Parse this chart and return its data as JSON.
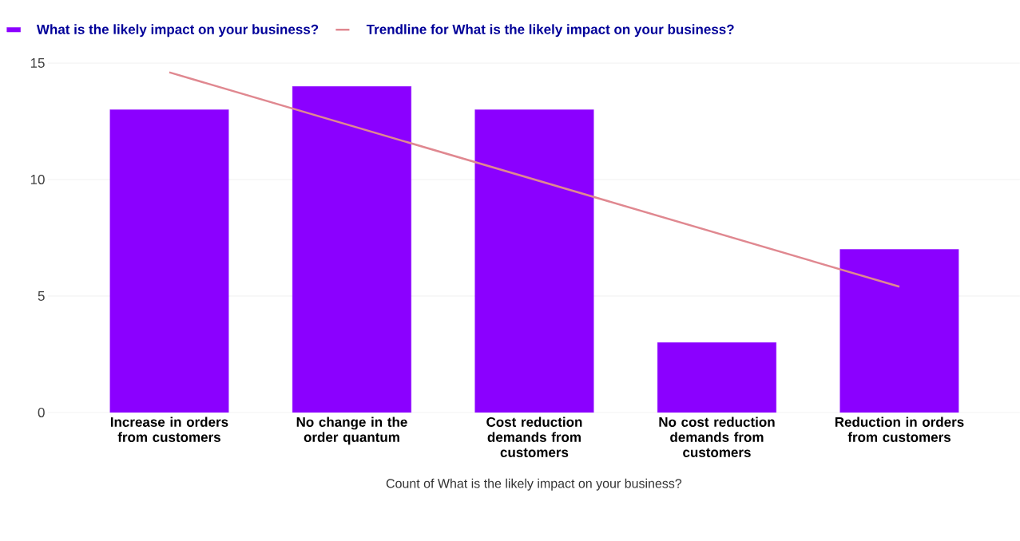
{
  "chart_data": {
    "type": "bar",
    "xlabel": "Count of What is the likely impact on your business?",
    "categories": [
      "Increase in orders from customers",
      "No change in the order quantum",
      "Cost reduction demands from customers",
      "No cost reduction demands from customers",
      "Reduction in orders from customers"
    ],
    "ylim": [
      0,
      15
    ],
    "yticks": [
      0,
      5,
      10,
      15
    ],
    "grid": "y",
    "legend": "top left",
    "series": [
      {
        "name": "What is the likely impact on your business?",
        "color": "#8b00ff",
        "values": [
          13,
          14,
          13,
          3,
          7
        ]
      },
      {
        "name": "Trendline for What is the likely impact on your business?",
        "type": "line",
        "color": "#e08890",
        "values": [
          14.6,
          12.3,
          10,
          7.7,
          5.4
        ]
      }
    ]
  }
}
